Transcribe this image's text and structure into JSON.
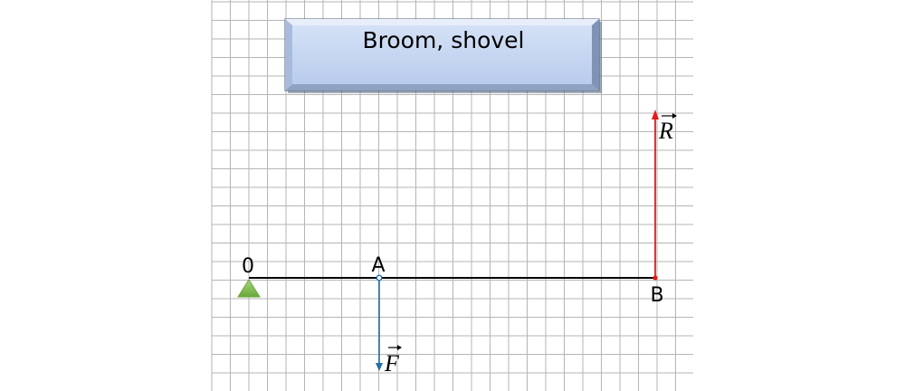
{
  "title": "Broom, shovel",
  "points": {
    "origin": "0",
    "a": "A",
    "b": "B"
  },
  "vectors": {
    "force": {
      "label": "F",
      "color": "#1f6fa8"
    },
    "reaction": {
      "label": "R",
      "color": "#e81818"
    }
  },
  "colors": {
    "grid": "#b5b5b5",
    "title_fill": "#c2d4f2",
    "title_border": "#4f5b73",
    "support": "#7ab648",
    "lever": "#000000"
  }
}
